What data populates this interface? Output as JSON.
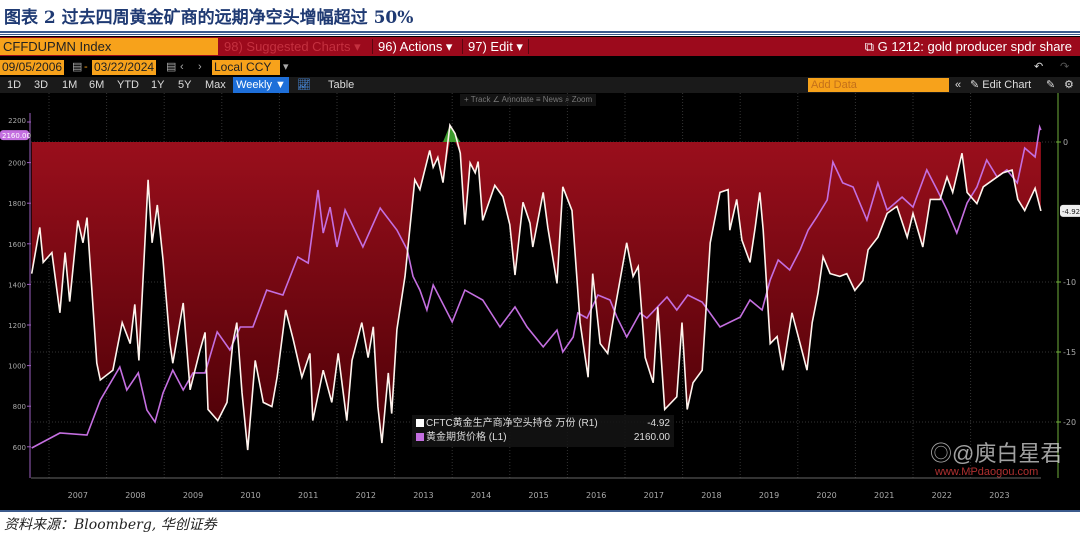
{
  "title": "图表 2  过去四周黄金矿商的远期净空头增幅超过 50%",
  "source": "资料来源：Bloomberg, 华创证券",
  "watermark": {
    "handle": "@庾白星君",
    "site": "www.MPdaogou.com"
  },
  "toolbar": {
    "ticker": "CFFDUPMN Index",
    "suggested": "98) Suggested Charts ▾",
    "actions": "96) Actions ▾",
    "edit": "97) Edit ▾",
    "launch_title": "G 1212: gold producer spdr share",
    "start_date": "09/05/2006",
    "end_date": "03/22/2024",
    "date_sep": "-",
    "currency": "Local CCY",
    "periods": [
      "1D",
      "3D",
      "1M",
      "6M",
      "YTD",
      "1Y",
      "5Y",
      "Max"
    ],
    "frequency": "Weekly ▼",
    "table": "Table",
    "add_data_placeholder": "Add Data",
    "edit_chart": "Edit Chart",
    "collapse": "«",
    "chart_tools": "+ Track  ∠ Annotate  ≡ News  ⌕ Zoom"
  },
  "colors": {
    "gold": "#c46fe0",
    "position": "#ffffff",
    "fill_negative": "#8c0a18",
    "fill_positive": "#3c9a2c",
    "accent": "#f7a21b",
    "bar": "#9c0a1c"
  },
  "chart_data": {
    "type": "line",
    "legend_placement": "bottom-center",
    "grid": true,
    "x_ticks": [
      "2007",
      "2008",
      "2009",
      "2010",
      "2011",
      "2012",
      "2013",
      "2014",
      "2015",
      "2016",
      "2017",
      "2018",
      "2019",
      "2020",
      "2021",
      "2022",
      "2023"
    ],
    "xlim": [
      2006.68,
      2024.22
    ],
    "y_left": {
      "ticks": [
        600,
        800,
        1000,
        1200,
        1400,
        1600,
        1800,
        2000,
        2200
      ],
      "lim": [
        400,
        2260
      ],
      "last_value_tag": "2160.00"
    },
    "y_right": {
      "ticks": [
        0,
        -10,
        -15,
        -20
      ],
      "lim": [
        -26,
        1.5
      ],
      "last_value_tag": "-4.92"
    },
    "series": [
      {
        "name": "CFTC黄金生产商净空头持仓 万份 (R1)",
        "axis": "right",
        "last": "-4.92",
        "points": [
          [
            2006.7,
            -9.4
          ],
          [
            2006.84,
            -6.1
          ],
          [
            2006.9,
            -8.6
          ],
          [
            2007.05,
            -7.9
          ],
          [
            2007.19,
            -12.2
          ],
          [
            2007.28,
            -7.9
          ],
          [
            2007.36,
            -11.4
          ],
          [
            2007.5,
            -5.6
          ],
          [
            2007.59,
            -7.2
          ],
          [
            2007.66,
            -5.4
          ],
          [
            2007.83,
            -15.8
          ],
          [
            2007.89,
            -17
          ],
          [
            2008.11,
            -16.3
          ],
          [
            2008.27,
            -12.9
          ],
          [
            2008.41,
            -14.4
          ],
          [
            2008.49,
            -11.6
          ],
          [
            2008.56,
            -15.6
          ],
          [
            2008.72,
            -2.7
          ],
          [
            2008.79,
            -7.2
          ],
          [
            2008.88,
            -4.5
          ],
          [
            2008.98,
            -8.4
          ],
          [
            2009.1,
            -14.4
          ],
          [
            2009.15,
            -15.8
          ],
          [
            2009.33,
            -11.5
          ],
          [
            2009.45,
            -17.7
          ],
          [
            2009.62,
            -14.9
          ],
          [
            2009.71,
            -13.6
          ],
          [
            2009.76,
            -19.1
          ],
          [
            2009.93,
            -19.9
          ],
          [
            2010.09,
            -18.6
          ],
          [
            2010.19,
            -14.4
          ],
          [
            2010.26,
            -12.9
          ],
          [
            2010.35,
            -17.9
          ],
          [
            2010.45,
            -22
          ],
          [
            2010.58,
            -15.6
          ],
          [
            2010.72,
            -18.6
          ],
          [
            2010.87,
            -18.9
          ],
          [
            2010.96,
            -16.8
          ],
          [
            2011.11,
            -12
          ],
          [
            2011.24,
            -14.1
          ],
          [
            2011.39,
            -16.8
          ],
          [
            2011.53,
            -15.1
          ],
          [
            2011.58,
            -19.9
          ],
          [
            2011.76,
            -16.3
          ],
          [
            2011.91,
            -18.6
          ],
          [
            2012.02,
            -15.1
          ],
          [
            2012.17,
            -19.9
          ],
          [
            2012.26,
            -15.6
          ],
          [
            2012.43,
            -12.9
          ],
          [
            2012.54,
            -15.4
          ],
          [
            2012.63,
            -13.2
          ],
          [
            2012.71,
            -18.9
          ],
          [
            2012.78,
            -21.5
          ],
          [
            2012.89,
            -16.5
          ],
          [
            2012.95,
            -19.4
          ],
          [
            2013.04,
            -13.4
          ],
          [
            2013.18,
            -9.6
          ],
          [
            2013.35,
            -2.7
          ],
          [
            2013.44,
            -3.4
          ],
          [
            2013.61,
            -0.6
          ],
          [
            2013.67,
            -1.8
          ],
          [
            2013.75,
            -1.1
          ],
          [
            2013.84,
            -2.9
          ],
          [
            2013.96,
            1.2
          ],
          [
            2014.05,
            0.6
          ],
          [
            2014.14,
            -0.8
          ],
          [
            2014.22,
            -5.9
          ],
          [
            2014.31,
            -1.5
          ],
          [
            2014.4,
            -2.2
          ],
          [
            2014.45,
            -1.4
          ],
          [
            2014.53,
            -5.6
          ],
          [
            2014.74,
            -3.1
          ],
          [
            2014.88,
            -3.9
          ],
          [
            2015.0,
            -5.9
          ],
          [
            2015.09,
            -9.5
          ],
          [
            2015.23,
            -4.3
          ],
          [
            2015.35,
            -5.8
          ],
          [
            2015.4,
            -7.5
          ],
          [
            2015.58,
            -3.6
          ],
          [
            2015.66,
            -6.1
          ],
          [
            2015.82,
            -10.1
          ],
          [
            2015.92,
            -3.2
          ],
          [
            2016.08,
            -4.9
          ],
          [
            2016.22,
            -12.9
          ],
          [
            2016.36,
            -16.8
          ],
          [
            2016.44,
            -9.4
          ],
          [
            2016.57,
            -14.4
          ],
          [
            2016.7,
            -15.1
          ],
          [
            2016.83,
            -11.8
          ],
          [
            2017.03,
            -7.2
          ],
          [
            2017.14,
            -9.6
          ],
          [
            2017.23,
            -8.9
          ],
          [
            2017.35,
            -15.4
          ],
          [
            2017.49,
            -17.2
          ],
          [
            2017.57,
            -11.8
          ],
          [
            2017.69,
            -19.1
          ],
          [
            2017.9,
            -18.2
          ],
          [
            2017.99,
            -12.9
          ],
          [
            2018.08,
            -19.1
          ],
          [
            2018.18,
            -17.2
          ],
          [
            2018.34,
            -16.3
          ],
          [
            2018.48,
            -7.2
          ],
          [
            2018.65,
            -3.6
          ],
          [
            2018.79,
            -3.4
          ],
          [
            2018.82,
            -6.3
          ],
          [
            2018.94,
            -4.1
          ],
          [
            2019.03,
            -7
          ],
          [
            2019.17,
            -8.6
          ],
          [
            2019.26,
            -6.1
          ],
          [
            2019.34,
            -3.6
          ],
          [
            2019.4,
            -6.3
          ],
          [
            2019.52,
            -14.4
          ],
          [
            2019.64,
            -13.9
          ],
          [
            2019.74,
            -16.3
          ],
          [
            2019.9,
            -12.2
          ],
          [
            2020.04,
            -14.4
          ],
          [
            2020.16,
            -16.3
          ],
          [
            2020.25,
            -12.9
          ],
          [
            2020.35,
            -10.8
          ],
          [
            2020.44,
            -8.2
          ],
          [
            2020.56,
            -9.4
          ],
          [
            2020.73,
            -9.6
          ],
          [
            2020.85,
            -9.4
          ],
          [
            2020.99,
            -10.6
          ],
          [
            2021.13,
            -9.9
          ],
          [
            2021.22,
            -7.7
          ],
          [
            2021.39,
            -6.8
          ],
          [
            2021.55,
            -5.1
          ],
          [
            2021.72,
            -4.6
          ],
          [
            2021.9,
            -6.8
          ],
          [
            2022.0,
            -5.1
          ],
          [
            2022.17,
            -7.5
          ],
          [
            2022.3,
            -4.1
          ],
          [
            2022.47,
            -4.1
          ],
          [
            2022.59,
            -2.5
          ],
          [
            2022.69,
            -3.6
          ],
          [
            2022.85,
            -0.8
          ],
          [
            2022.94,
            -3.6
          ],
          [
            2023.11,
            -4.4
          ],
          [
            2023.22,
            -3.2
          ],
          [
            2023.39,
            -2.7
          ],
          [
            2023.56,
            -2.2
          ],
          [
            2023.72,
            -2
          ],
          [
            2023.82,
            -4.1
          ],
          [
            2023.94,
            -4.9
          ],
          [
            2024.12,
            -3.3
          ],
          [
            2024.22,
            -4.92
          ]
        ]
      },
      {
        "name": "黄金期货价格 (L1)",
        "axis": "left",
        "last": "2160.00",
        "points": [
          [
            2006.7,
            594
          ],
          [
            2007.19,
            668
          ],
          [
            2007.66,
            658
          ],
          [
            2007.89,
            830
          ],
          [
            2008.23,
            993
          ],
          [
            2008.35,
            880
          ],
          [
            2008.55,
            964
          ],
          [
            2008.7,
            781
          ],
          [
            2008.84,
            722
          ],
          [
            2008.98,
            865
          ],
          [
            2009.15,
            978
          ],
          [
            2009.33,
            880
          ],
          [
            2009.5,
            964
          ],
          [
            2009.71,
            964
          ],
          [
            2009.92,
            1166
          ],
          [
            2010.14,
            1077
          ],
          [
            2010.32,
            1190
          ],
          [
            2010.54,
            1190
          ],
          [
            2010.78,
            1372
          ],
          [
            2011.06,
            1348
          ],
          [
            2011.32,
            1535
          ],
          [
            2011.5,
            1505
          ],
          [
            2011.67,
            1865
          ],
          [
            2011.76,
            1653
          ],
          [
            2011.88,
            1781
          ],
          [
            2012.0,
            1584
          ],
          [
            2012.14,
            1767
          ],
          [
            2012.45,
            1584
          ],
          [
            2012.75,
            1776
          ],
          [
            2013.04,
            1668
          ],
          [
            2013.22,
            1570
          ],
          [
            2013.32,
            1440
          ],
          [
            2013.44,
            1372
          ],
          [
            2013.56,
            1274
          ],
          [
            2013.67,
            1397
          ],
          [
            2014.0,
            1215
          ],
          [
            2014.22,
            1372
          ],
          [
            2014.53,
            1323
          ],
          [
            2014.83,
            1190
          ],
          [
            2015.09,
            1289
          ],
          [
            2015.3,
            1190
          ],
          [
            2015.58,
            1092
          ],
          [
            2015.82,
            1175
          ],
          [
            2015.92,
            1067
          ],
          [
            2016.1,
            1141
          ],
          [
            2016.18,
            1259
          ],
          [
            2016.34,
            1234
          ],
          [
            2016.53,
            1348
          ],
          [
            2016.74,
            1323
          ],
          [
            2016.86,
            1239
          ],
          [
            2017.03,
            1141
          ],
          [
            2017.26,
            1259
          ],
          [
            2017.38,
            1234
          ],
          [
            2017.73,
            1338
          ],
          [
            2017.9,
            1274
          ],
          [
            2018.09,
            1348
          ],
          [
            2018.34,
            1313
          ],
          [
            2018.65,
            1190
          ],
          [
            2019.0,
            1239
          ],
          [
            2019.17,
            1323
          ],
          [
            2019.38,
            1274
          ],
          [
            2019.52,
            1422
          ],
          [
            2019.66,
            1520
          ],
          [
            2019.86,
            1471
          ],
          [
            2020.04,
            1570
          ],
          [
            2020.18,
            1668
          ],
          [
            2020.33,
            1732
          ],
          [
            2020.51,
            1816
          ],
          [
            2020.61,
            2003
          ],
          [
            2020.78,
            1900
          ],
          [
            2020.96,
            1880
          ],
          [
            2021.2,
            1717
          ],
          [
            2021.39,
            1900
          ],
          [
            2021.55,
            1767
          ],
          [
            2021.81,
            1830
          ],
          [
            2022.0,
            1781
          ],
          [
            2022.24,
            1964
          ],
          [
            2022.42,
            1865
          ],
          [
            2022.59,
            1767
          ],
          [
            2022.76,
            1653
          ],
          [
            2022.94,
            1801
          ],
          [
            2023.11,
            1880
          ],
          [
            2023.28,
            2013
          ],
          [
            2023.46,
            1929
          ],
          [
            2023.63,
            1964
          ],
          [
            2023.81,
            1900
          ],
          [
            2023.94,
            2072
          ],
          [
            2024.12,
            2028
          ],
          [
            2024.2,
            2175
          ],
          [
            2024.22,
            2160
          ]
        ]
      }
    ]
  }
}
